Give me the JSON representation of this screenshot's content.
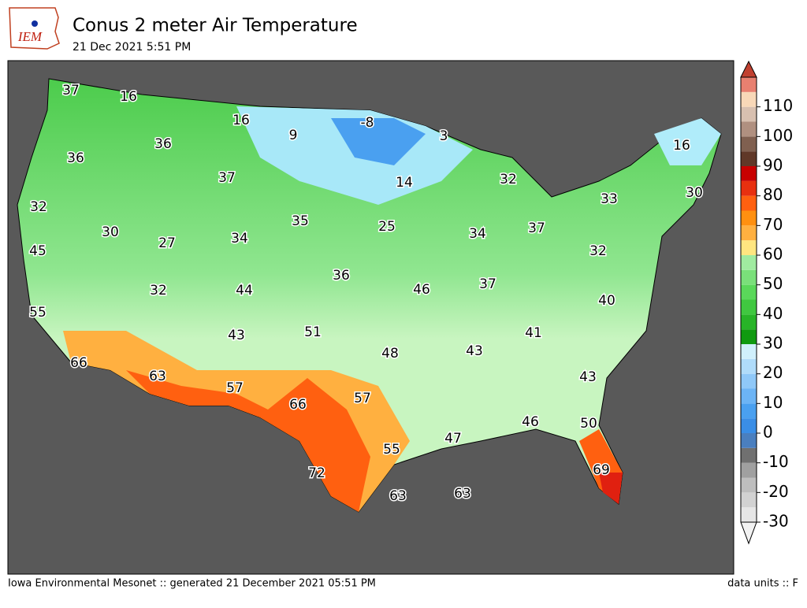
{
  "header": {
    "logo": "IEM",
    "title": "Conus 2 meter Air Temperature",
    "subtitle": "21 Dec 2021 5:51 PM"
  },
  "map": {
    "labels": [
      37,
      16,
      16,
      9,
      -8,
      3,
      16,
      36,
      36,
      37,
      14,
      32,
      33,
      30,
      32,
      30,
      35,
      25,
      34,
      37,
      27,
      34,
      45,
      32,
      36,
      46,
      37,
      32,
      44,
      40,
      55,
      51,
      43,
      41,
      48,
      43,
      66,
      63,
      57,
      43,
      66,
      57,
      46,
      50,
      47,
      55,
      72,
      69,
      63,
      63
    ]
  },
  "colorbar": {
    "clim": [
      -30,
      120
    ],
    "ticks": [
      -30,
      -20,
      -10,
      0,
      10,
      20,
      30,
      40,
      50,
      60,
      70,
      80,
      90,
      100,
      110
    ],
    "colors": [
      "#e6e6e6",
      "#d2d2d2",
      "#bebebe",
      "#a0a0a0",
      "#707070",
      "#4a7fbf",
      "#3a8ee6",
      "#4aa0f0",
      "#6cb4f5",
      "#8fc8f8",
      "#b0dcfa",
      "#d0f0fc",
      "#109a10",
      "#28b428",
      "#40c840",
      "#5ad85a",
      "#7ae07a",
      "#a0eba0",
      "#ffe680",
      "#ffb040",
      "#ff9010",
      "#ff6010",
      "#e83010",
      "#c80000",
      "#603828",
      "#806050",
      "#b09080",
      "#d8c0b0",
      "#f8d8b8",
      "#e88070"
    ]
  },
  "footer": {
    "left": "Iowa Environmental Mesonet :: generated 21 December 2021 05:51 PM",
    "right": "data units :: F"
  }
}
